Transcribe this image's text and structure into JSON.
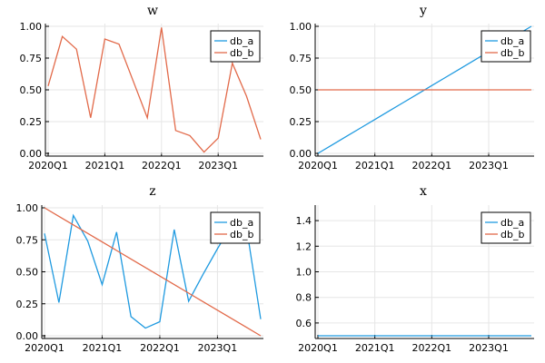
{
  "colors": {
    "db_a": "#1f9ae0",
    "db_b": "#e26a4a"
  },
  "chart_data": [
    {
      "type": "line",
      "title": "w",
      "x": [
        "2020Q1",
        "2020Q2",
        "2020Q3",
        "2020Q4",
        "2021Q1",
        "2021Q2",
        "2021Q3",
        "2021Q4",
        "2022Q1",
        "2022Q2",
        "2022Q3",
        "2022Q4",
        "2023Q1",
        "2023Q2",
        "2023Q3",
        "2023Q4"
      ],
      "x_ticks": [
        "2020Q1",
        "2021Q1",
        "2022Q1",
        "2023Q1"
      ],
      "ylim": [
        0,
        1.0
      ],
      "y_ticks": [
        "0.00",
        "0.25",
        "0.50",
        "0.75",
        "1.00"
      ],
      "y_tick_values": [
        0,
        0.25,
        0.5,
        0.75,
        1.0
      ],
      "legend": "top-right",
      "series": [
        {
          "name": "db_a",
          "values": [
            null,
            null,
            null,
            null,
            null,
            null,
            null,
            null,
            null,
            null,
            null,
            null,
            null,
            null,
            null,
            null
          ]
        },
        {
          "name": "db_b",
          "values": [
            0.53,
            0.92,
            0.82,
            0.28,
            0.9,
            0.86,
            0.57,
            0.28,
            0.99,
            0.18,
            0.14,
            0.01,
            0.12,
            0.71,
            0.45,
            0.11
          ]
        }
      ]
    },
    {
      "type": "line",
      "title": "y",
      "x": [
        "2020Q1",
        "2020Q2",
        "2020Q3",
        "2020Q4",
        "2021Q1",
        "2021Q2",
        "2021Q3",
        "2021Q4",
        "2022Q1",
        "2022Q2",
        "2022Q3",
        "2022Q4",
        "2023Q1",
        "2023Q2",
        "2023Q3",
        "2023Q4"
      ],
      "x_ticks": [
        "2020Q1",
        "2021Q1",
        "2022Q1",
        "2023Q1"
      ],
      "ylim": [
        0,
        1.0
      ],
      "y_ticks": [
        "0.00",
        "0.25",
        "0.50",
        "0.75",
        "1.00"
      ],
      "y_tick_values": [
        0,
        0.25,
        0.5,
        0.75,
        1.0
      ],
      "legend": "top-right",
      "series": [
        {
          "name": "db_a",
          "values": [
            0.0,
            0.0667,
            0.1333,
            0.2,
            0.2667,
            0.3333,
            0.4,
            0.4667,
            0.5333,
            0.6,
            0.6667,
            0.7333,
            0.8,
            0.8667,
            0.9333,
            1.0
          ]
        },
        {
          "name": "db_b",
          "values": [
            0.5,
            0.5,
            0.5,
            0.5,
            0.5,
            0.5,
            0.5,
            0.5,
            0.5,
            0.5,
            0.5,
            0.5,
            0.5,
            0.5,
            0.5,
            0.5
          ]
        }
      ]
    },
    {
      "type": "line",
      "title": "z",
      "x": [
        "2020Q1",
        "2020Q2",
        "2020Q3",
        "2020Q4",
        "2021Q1",
        "2021Q2",
        "2021Q3",
        "2021Q4",
        "2022Q1",
        "2022Q2",
        "2022Q3",
        "2022Q4",
        "2023Q1",
        "2023Q2",
        "2023Q3",
        "2023Q4"
      ],
      "x_ticks": [
        "2020Q1",
        "2021Q1",
        "2022Q1",
        "2023Q1"
      ],
      "ylim": [
        0,
        1.0
      ],
      "y_ticks": [
        "0.00",
        "0.25",
        "0.50",
        "0.75",
        "1.00"
      ],
      "y_tick_values": [
        0,
        0.25,
        0.5,
        0.75,
        1.0
      ],
      "legend": "top-right",
      "series": [
        {
          "name": "db_a",
          "values": [
            0.8,
            0.26,
            0.94,
            0.74,
            0.4,
            0.81,
            0.15,
            0.06,
            0.11,
            0.83,
            0.27,
            0.48,
            0.68,
            0.87,
            0.86,
            0.13
          ]
        },
        {
          "name": "db_b",
          "values": [
            1.0,
            0.9333,
            0.8667,
            0.8,
            0.7333,
            0.6667,
            0.6,
            0.5333,
            0.4667,
            0.4,
            0.3333,
            0.2667,
            0.2,
            0.1333,
            0.0667,
            0.0
          ]
        }
      ]
    },
    {
      "type": "line",
      "title": "x",
      "x": [
        "2020Q1",
        "2020Q2",
        "2020Q3",
        "2020Q4",
        "2021Q1",
        "2021Q2",
        "2021Q3",
        "2021Q4",
        "2022Q1",
        "2022Q2",
        "2022Q3",
        "2022Q4",
        "2023Q1",
        "2023Q2",
        "2023Q3",
        "2023Q4"
      ],
      "x_ticks": [
        "2020Q1",
        "2021Q1",
        "2022Q1",
        "2023Q1"
      ],
      "ylim": [
        0.5,
        1.5
      ],
      "y_ticks": [
        "0.6",
        "0.8",
        "1.0",
        "1.2",
        "1.4"
      ],
      "y_tick_values": [
        0.6,
        0.8,
        1.0,
        1.2,
        1.4
      ],
      "legend": "top-right",
      "series": [
        {
          "name": "db_a",
          "values": [
            0.5,
            0.5,
            0.5,
            0.5,
            0.5,
            0.5,
            0.5,
            0.5,
            0.5,
            0.5,
            0.5,
            0.5,
            0.5,
            0.5,
            0.5,
            0.5
          ]
        },
        {
          "name": "db_b",
          "values": [
            null,
            null,
            null,
            null,
            null,
            null,
            null,
            null,
            null,
            null,
            null,
            null,
            null,
            null,
            null,
            null
          ]
        }
      ]
    }
  ]
}
